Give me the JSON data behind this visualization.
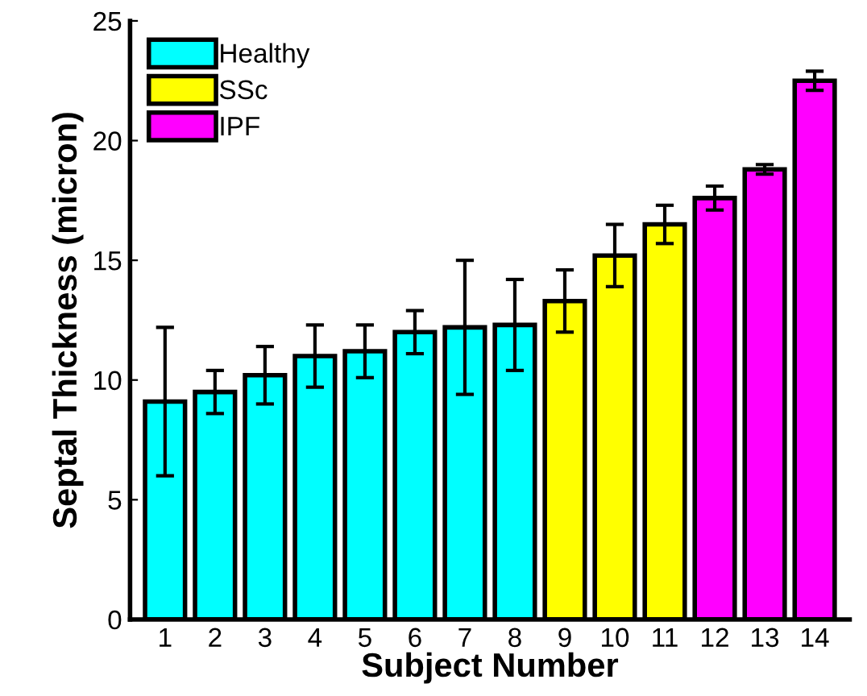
{
  "chart_data": {
    "type": "bar",
    "xlabel": "Subject Number",
    "ylabel": "Septal Thickness (micron)",
    "categories": [
      "1",
      "2",
      "3",
      "4",
      "5",
      "6",
      "7",
      "8",
      "9",
      "10",
      "11",
      "12",
      "13",
      "14"
    ],
    "series": [
      {
        "name": "Healthy",
        "color": "#00ffff",
        "values": [
          9.1,
          9.5,
          10.2,
          11.0,
          11.2,
          12.0,
          12.2,
          12.3,
          null,
          null,
          null,
          null,
          null,
          null
        ],
        "errors": [
          3.1,
          0.9,
          1.2,
          1.3,
          1.1,
          0.9,
          2.8,
          1.9,
          null,
          null,
          null,
          null,
          null,
          null
        ]
      },
      {
        "name": "SSc",
        "color": "#ffff00",
        "values": [
          null,
          null,
          null,
          null,
          null,
          null,
          null,
          null,
          13.3,
          15.2,
          16.5,
          null,
          null,
          null
        ],
        "errors": [
          null,
          null,
          null,
          null,
          null,
          null,
          null,
          null,
          1.3,
          1.3,
          0.8,
          null,
          null,
          null
        ]
      },
      {
        "name": "IPF",
        "color": "#ff00ff",
        "values": [
          null,
          null,
          null,
          null,
          null,
          null,
          null,
          null,
          null,
          null,
          null,
          17.6,
          18.8,
          22.5
        ],
        "errors": [
          null,
          null,
          null,
          null,
          null,
          null,
          null,
          null,
          null,
          null,
          null,
          0.5,
          0.2,
          0.4
        ]
      }
    ],
    "ylim": [
      0,
      25
    ],
    "yticks": [
      0,
      5,
      10,
      15,
      20,
      25
    ],
    "grid": false,
    "legend": "top left"
  }
}
